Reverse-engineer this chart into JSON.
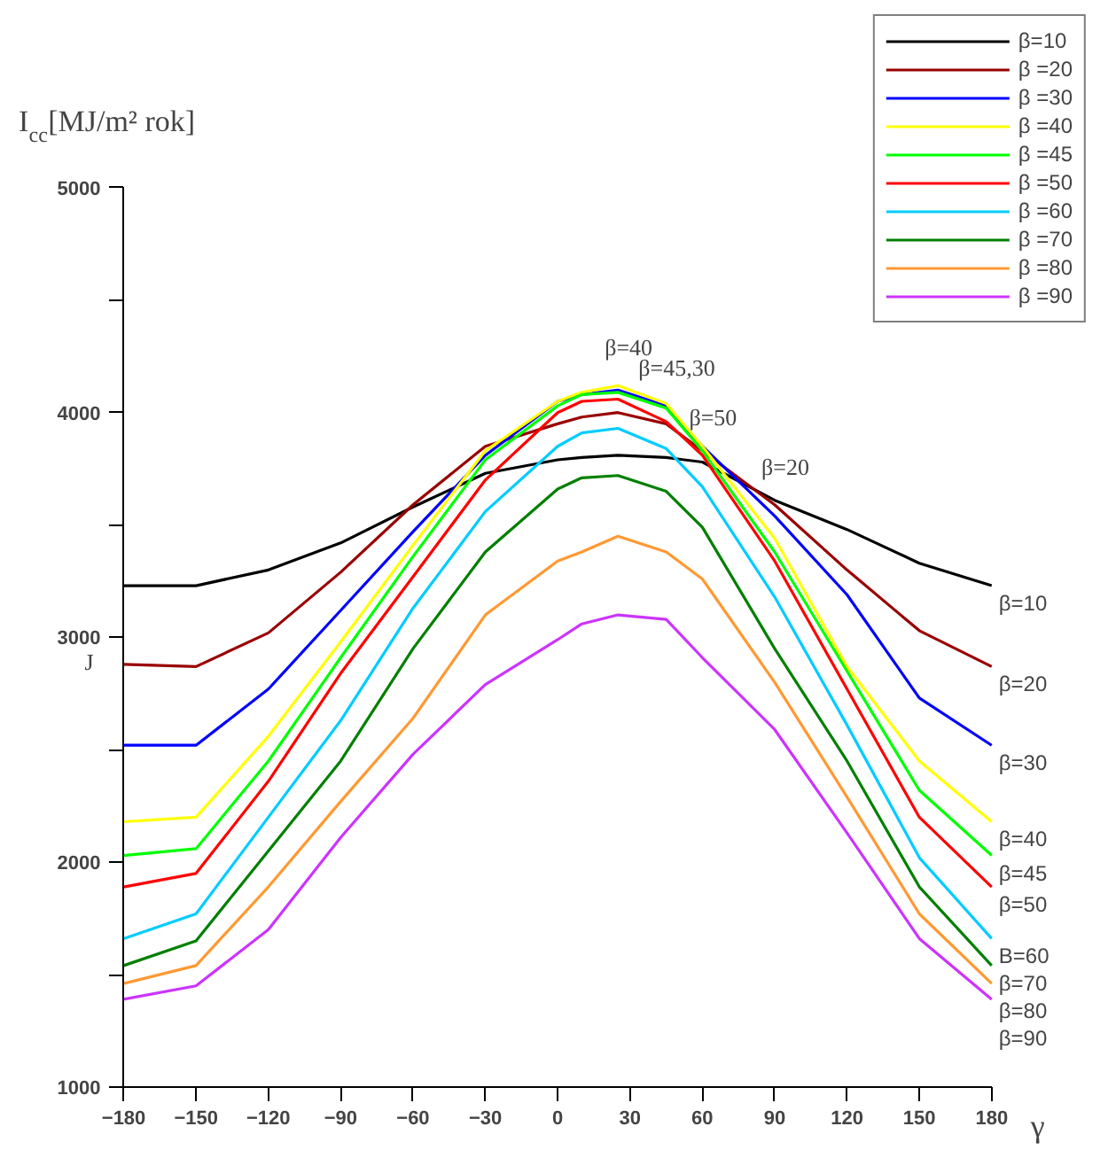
{
  "chart_data": {
    "type": "line",
    "ylabel": "I$_{cc}$[MJ/m² rok]",
    "xlabel": "γ",
    "x": [
      -180,
      -150,
      -120,
      -90,
      -60,
      -30,
      0,
      10,
      25,
      45,
      60,
      90,
      120,
      150,
      180
    ],
    "xlim": [
      -180,
      180
    ],
    "xticks": [
      -180,
      -150,
      -120,
      -90,
      -60,
      -30,
      0,
      30,
      60,
      90,
      120,
      150,
      180
    ],
    "ylim": [
      1000,
      5000
    ],
    "yticks": [
      1000,
      {
        "value": 1500,
        "label": null
      },
      2000,
      {
        "value": 2500,
        "label": null
      },
      3000,
      {
        "value": 3500,
        "label": null
      },
      4000,
      {
        "value": 4500,
        "label": null
      },
      5000
    ],
    "grid": false,
    "legend": "top right",
    "marker": "none",
    "line_style": "solid",
    "series": [
      {
        "name": "β=10",
        "color": "#000000",
        "values": [
          3230,
          3230,
          3300,
          3420,
          3580,
          3730,
          3790,
          3800,
          3810,
          3800,
          3780,
          3610,
          3480,
          3330,
          3230
        ]
      },
      {
        "name": "β =20",
        "color": "#990000",
        "values": [
          2880,
          2870,
          3020,
          3290,
          3590,
          3850,
          3950,
          3980,
          4000,
          3950,
          3830,
          3590,
          3300,
          3030,
          2870
        ]
      },
      {
        "name": "β =30",
        "color": "#0000ff",
        "values": [
          2520,
          2520,
          2770,
          3120,
          3470,
          3810,
          4050,
          4080,
          4100,
          4030,
          3850,
          3540,
          3190,
          2730,
          2520
        ]
      },
      {
        "name": "β =40",
        "color": "#ffff00",
        "values": [
          2180,
          2200,
          2560,
          2980,
          3410,
          3830,
          4050,
          4090,
          4120,
          4040,
          3850,
          3440,
          2870,
          2450,
          2180
        ]
      },
      {
        "name": "β =45",
        "color": "#00ff00",
        "values": [
          2030,
          2060,
          2450,
          2910,
          3360,
          3790,
          4030,
          4080,
          4090,
          4020,
          3830,
          3380,
          2850,
          2320,
          2030
        ]
      },
      {
        "name": "β =50",
        "color": "#ff0000",
        "values": [
          1890,
          1950,
          2360,
          2840,
          3270,
          3700,
          4000,
          4050,
          4060,
          3960,
          3810,
          3340,
          2770,
          2200,
          1890
        ]
      },
      {
        "name": "β =60",
        "color": "#00ccff",
        "values": [
          1660,
          1770,
          2200,
          2630,
          3130,
          3560,
          3850,
          3910,
          3930,
          3840,
          3670,
          3180,
          2610,
          2020,
          1660
        ]
      },
      {
        "name": "β =70",
        "color": "#008000",
        "values": [
          1540,
          1650,
          2050,
          2450,
          2950,
          3380,
          3660,
          3710,
          3720,
          3650,
          3490,
          2950,
          2450,
          1890,
          1540
        ]
      },
      {
        "name": "β =80",
        "color": "#ff9933",
        "values": [
          1460,
          1540,
          1890,
          2270,
          2640,
          3100,
          3340,
          3380,
          3450,
          3380,
          3260,
          2800,
          2290,
          1770,
          1460
        ]
      },
      {
        "name": "β =90",
        "color": "#cc33ff",
        "values": [
          1390,
          1450,
          1700,
          2110,
          2480,
          2790,
          2990,
          3060,
          3100,
          3080,
          2910,
          2590,
          2130,
          1660,
          1390
        ]
      }
    ],
    "annotations": [
      {
        "text": "β=40",
        "x": 25,
        "y": 4120
      },
      {
        "text": "β=45,30",
        "x": 45,
        "y": 4030
      },
      {
        "text": "β=50",
        "x": 60,
        "y": 3810
      },
      {
        "text": "β=20",
        "x": 90,
        "y": 3590
      },
      {
        "text": "β=10",
        "x": 180,
        "y": 3230
      },
      {
        "text": "β=20",
        "x": 180,
        "y": 2870
      },
      {
        "text": "β=30",
        "x": 180,
        "y": 2520
      },
      {
        "text": "β=40",
        "x": 180,
        "y": 2180
      },
      {
        "text": "β=45",
        "x": 180,
        "y": 2030
      },
      {
        "text": "β=50",
        "x": 180,
        "y": 1890
      },
      {
        "text": "B=60",
        "x": 180,
        "y": 1660
      },
      {
        "text": "β=70",
        "x": 180,
        "y": 1540
      },
      {
        "text": "β=80",
        "x": 180,
        "y": 1460
      },
      {
        "text": "β=90",
        "x": 180,
        "y": 1390
      },
      "J"
    ]
  }
}
